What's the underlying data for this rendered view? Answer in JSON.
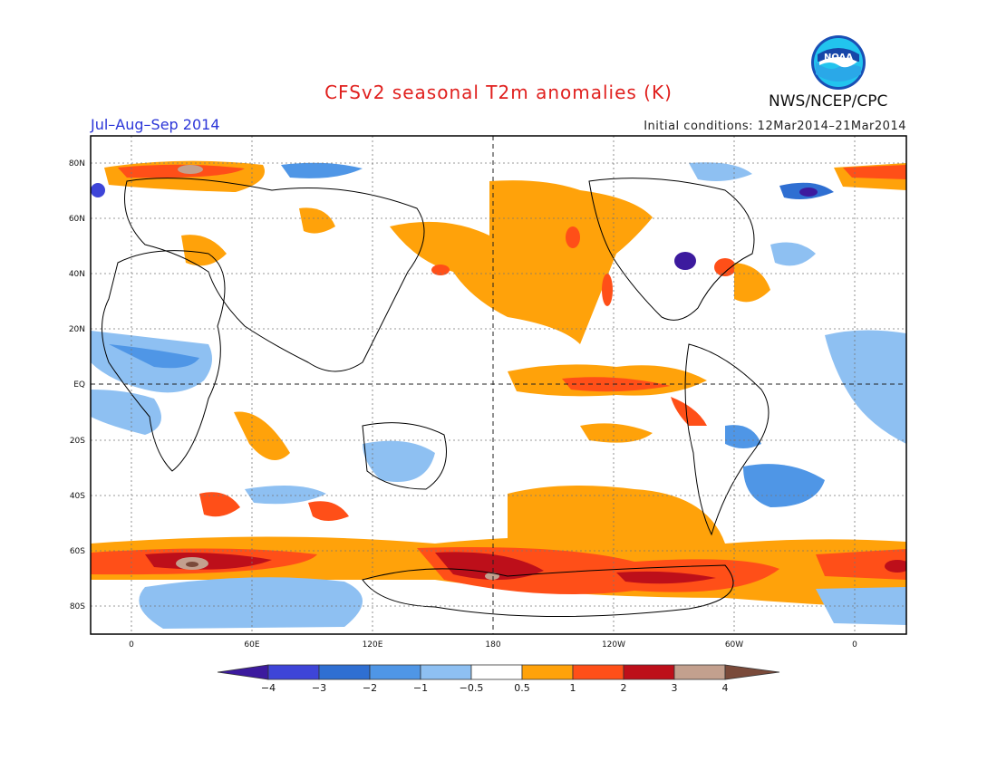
{
  "header": {
    "title": "CFSv2 seasonal T2m anomalies (K)",
    "period": "Jul–Aug–Sep 2014",
    "initial_conditions": "Initial conditions: 12Mar2014–21Mar2014",
    "agency": "NWS/NCEP/CPC",
    "logo_text": "NOAA",
    "logo_icon": "noaa-logo-icon"
  },
  "map": {
    "lat_labels": [
      "80N",
      "60N",
      "40N",
      "20N",
      "EQ",
      "20S",
      "40S",
      "60S",
      "80S"
    ],
    "lon_labels": [
      "0",
      "60E",
      "120E",
      "180",
      "120W",
      "60W",
      "0"
    ]
  },
  "colorbar": {
    "colors": [
      "#3c1a9e",
      "#3e45d8",
      "#2f6fd2",
      "#4f96e6",
      "#8ec0f2",
      "#ffffff",
      "#ffa20a",
      "#ff4f18",
      "#bd0f1a",
      "#c3a08e",
      "#7a4a3a"
    ],
    "labels": [
      "−4",
      "−3",
      "−2",
      "−1",
      "−0.5",
      "0.5",
      "1",
      "2",
      "3",
      "4"
    ]
  }
}
